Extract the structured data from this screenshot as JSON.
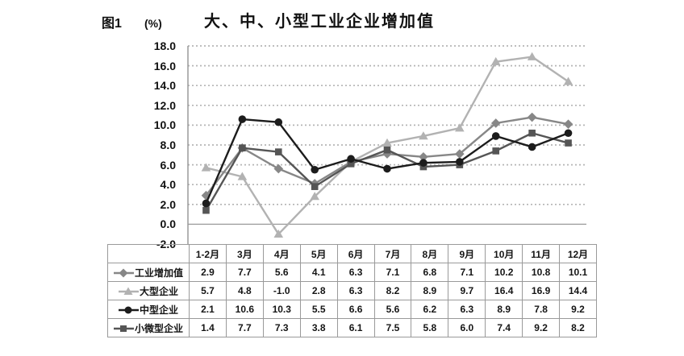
{
  "header": {
    "figure_label": "图1",
    "unit_label": "(%)",
    "title": "大、中、小型工业企业增加值"
  },
  "chart_data": {
    "type": "line",
    "title": "大、中、小型工业企业增加值",
    "ylabel": "(%)",
    "xlabel": "",
    "categories": [
      "1-2月",
      "3月",
      "4月",
      "5月",
      "6月",
      "7月",
      "8月",
      "9月",
      "10月",
      "11月",
      "12月"
    ],
    "series": [
      {
        "name": "工业增加值",
        "marker": "diamond",
        "color": "#878787",
        "values": [
          2.9,
          7.7,
          5.6,
          4.1,
          6.3,
          7.1,
          6.8,
          7.1,
          10.2,
          10.8,
          10.1
        ]
      },
      {
        "name": "大型企业",
        "marker": "triangle",
        "color": "#b2b2b2",
        "values": [
          5.7,
          4.8,
          -1.0,
          2.8,
          6.3,
          8.2,
          8.9,
          9.7,
          16.4,
          16.9,
          14.4
        ]
      },
      {
        "name": "中型企业",
        "marker": "circle",
        "color": "#1c1c1c",
        "values": [
          2.1,
          10.6,
          10.3,
          5.5,
          6.6,
          5.6,
          6.2,
          6.3,
          8.9,
          7.8,
          9.2
        ]
      },
      {
        "name": "小微型企业",
        "marker": "square",
        "color": "#555555",
        "values": [
          1.4,
          7.7,
          7.3,
          3.8,
          6.1,
          7.5,
          5.8,
          6.0,
          7.4,
          9.2,
          8.2
        ]
      }
    ],
    "ylim": [
      -2.0,
      18.0
    ],
    "ytick_step": 2.0,
    "yticks": [
      "18.0",
      "16.0",
      "14.0",
      "12.0",
      "10.0",
      "8.0",
      "6.0",
      "4.0",
      "2.0",
      "0.0",
      "-2.0"
    ],
    "grid": "horizontal dashed, zero line solid",
    "legend_position": "table left column"
  },
  "colors": {
    "grid": "#b5b5b5",
    "axis": "#9a9a9a",
    "table_border": "#9a9a9a",
    "text": "#111111",
    "background": "#ffffff"
  }
}
